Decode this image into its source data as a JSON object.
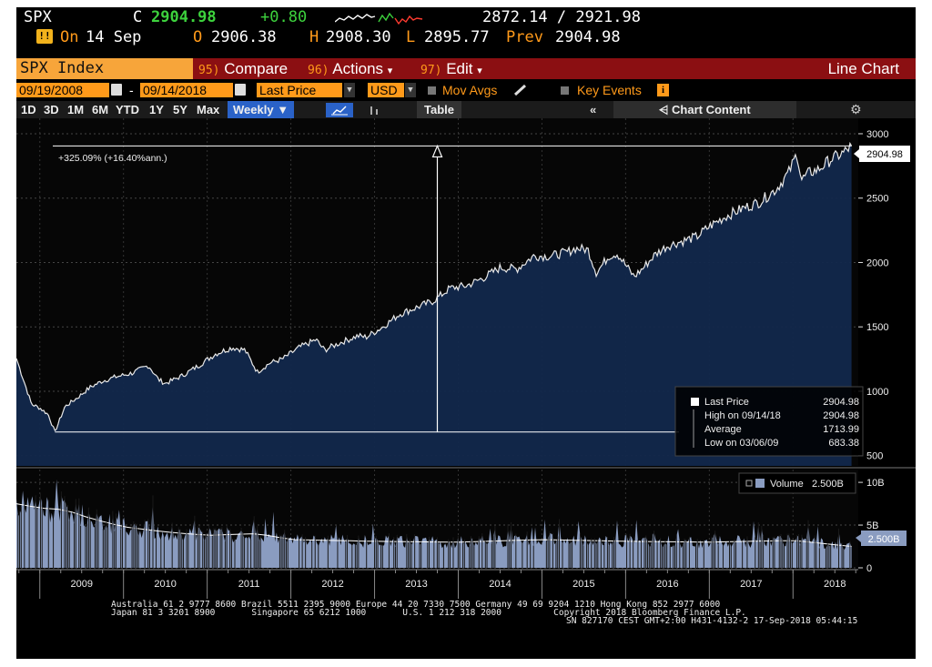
{
  "quote": {
    "ticker": "SPX",
    "last_prefix": "C",
    "last_price": "2904.98",
    "change": "+0.80",
    "range_low_high": "2872.14 / 2921.98",
    "status_badge": "!!",
    "on_label": "On",
    "on_date": "14 Sep",
    "open_label": "O",
    "open": "2906.38",
    "high_label": "H",
    "high": "2908.30",
    "low_label": "L",
    "low": "2895.77",
    "prev_label": "Prev",
    "prev": "2904.98"
  },
  "menu": {
    "security": "SPX Index",
    "compare_num": "95)",
    "compare": "Compare",
    "actions_num": "96)",
    "actions": "Actions",
    "edit_num": "97)",
    "edit": "Edit",
    "chart_type": "Line Chart"
  },
  "settings": {
    "start_date": "09/19/2008",
    "dash": "-",
    "end_date": "09/14/2018",
    "field": "Last Price",
    "currency": "USD",
    "mov_avgs": "Mov Avgs",
    "key_events": "Key Events"
  },
  "ranges": {
    "items": [
      "1D",
      "3D",
      "1M",
      "6M",
      "YTD",
      "1Y",
      "5Y",
      "Max"
    ],
    "frequency": "Weekly",
    "table": "Table",
    "chart_content": "Chart Content"
  },
  "chart_data": {
    "type": "area",
    "x_labels": [
      "2009",
      "2010",
      "2011",
      "2012",
      "2013",
      "2014",
      "2015",
      "2016",
      "2017",
      "2018"
    ],
    "price_ticks": [
      "3000",
      "2500",
      "2000",
      "1500",
      "1000",
      "500"
    ],
    "ylim": [
      500,
      3000
    ],
    "volume_ticks": [
      "10B",
      "5B",
      "0"
    ],
    "volume_ylim": [
      0,
      10
    ],
    "series": [
      {
        "name": "Last Price",
        "x": [
          2008.72,
          2008.8,
          2008.9,
          2009.0,
          2009.1,
          2009.18,
          2009.3,
          2009.45,
          2009.6,
          2009.75,
          2009.9,
          2010.1,
          2010.3,
          2010.42,
          2010.5,
          2010.7,
          2010.9,
          2011.1,
          2011.3,
          2011.45,
          2011.6,
          2011.75,
          2011.9,
          2012.1,
          2012.3,
          2012.4,
          2012.6,
          2012.8,
          2012.9,
          2013.1,
          2013.3,
          2013.5,
          2013.7,
          2013.9,
          2014.1,
          2014.3,
          2014.5,
          2014.7,
          2014.8,
          2014.9,
          2015.1,
          2015.3,
          2015.4,
          2015.55,
          2015.65,
          2015.8,
          2015.9,
          2016.1,
          2016.2,
          2016.35,
          2016.5,
          2016.7,
          2016.85,
          2017.0,
          2017.2,
          2017.4,
          2017.6,
          2017.8,
          2017.95,
          2018.05,
          2018.1,
          2018.2,
          2018.3,
          2018.45,
          2018.6,
          2018.7
        ],
        "values": [
          1255,
          1100,
          900,
          870,
          820,
          683,
          880,
          950,
          1030,
          1080,
          1110,
          1140,
          1200,
          1090,
          1060,
          1120,
          1200,
          1290,
          1340,
          1320,
          1150,
          1220,
          1250,
          1340,
          1400,
          1320,
          1380,
          1430,
          1420,
          1500,
          1600,
          1650,
          1700,
          1800,
          1820,
          1880,
          1960,
          1950,
          2000,
          2050,
          2050,
          2080,
          2110,
          2100,
          1920,
          2050,
          2070,
          1890,
          1950,
          2060,
          2130,
          2170,
          2200,
          2280,
          2360,
          2420,
          2470,
          2570,
          2700,
          2850,
          2640,
          2700,
          2720,
          2800,
          2850,
          2905
        ]
      },
      {
        "name": "Volume",
        "x": [
          2008.72,
          2009.0,
          2009.3,
          2009.6,
          2010.0,
          2010.5,
          2011.0,
          2011.6,
          2012.0,
          2013.0,
          2014.0,
          2015.0,
          2016.0,
          2017.0,
          2018.0,
          2018.7
        ],
        "values": [
          7.5,
          7.0,
          6.8,
          5.8,
          4.8,
          4.2,
          3.8,
          4.0,
          3.3,
          3.1,
          3.0,
          3.3,
          3.1,
          3.0,
          3.2,
          2.5
        ]
      }
    ],
    "annotation_change": "+325.09% (+16.40%ann.)",
    "last_price_tag": "2904.98",
    "volume_tag": "2.500B",
    "legend": {
      "rows": [
        {
          "label": "Last Price",
          "value": "2904.98"
        },
        {
          "label": "High on 09/14/18",
          "value": "2904.98"
        },
        {
          "label": "Average",
          "value": "1713.99"
        },
        {
          "label": "Low on 03/06/09",
          "value": "683.38"
        }
      ],
      "volume_label": "Volume",
      "volume_value": "2.500B"
    },
    "grid": true
  },
  "footer": {
    "line1": "Australia 61 2 9777 8600 Brazil 5511 2395 9000 Europe 44 20 7330 7500 Germany 49 69 9204 1210 Hong Kong 852 2977 6000",
    "line2": "Japan 81 3 3201 8900       Singapore 65 6212 1000       U.S. 1 212 318 2000          Copyright 2018 Bloomberg Finance L.P.",
    "line3": "SN 827170 CEST GMT+2:00 H431-4132-2 17-Sep-2018 05:44:15"
  },
  "colors": {
    "background": "#000000",
    "amber": "#ff9a1a",
    "green": "#3dd23d",
    "menu_bar": "#8b0f12",
    "area_fill": "#12284c",
    "volume_fill": "#8a9cc0",
    "weekly_button": "#2a62c8"
  }
}
